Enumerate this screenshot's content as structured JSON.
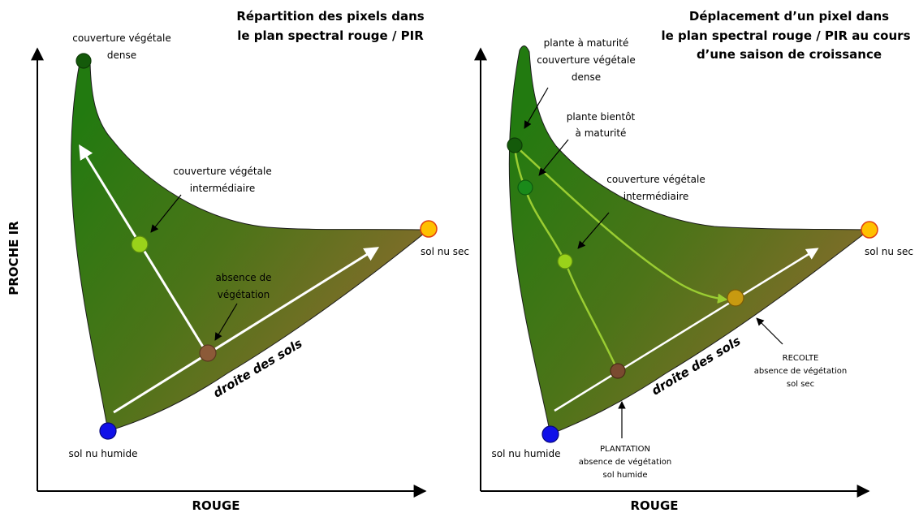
{
  "left_panel": {
    "title_line1": "Répartition des pixels dans",
    "title_line2": "le plan spectral rouge / PIR",
    "y_axis_label": "PROCHE IR",
    "x_axis_label": "ROUGE",
    "soil_line_label": "droite des sols",
    "dense_label_line1": "couverture végétale",
    "dense_label_line2": "dense",
    "intermediate_label_line1": "couverture végétale",
    "intermediate_label_line2": "intermédiaire",
    "absence_label_line1": "absence de",
    "absence_label_line2": "végétation",
    "dry_soil_label": "sol nu sec",
    "wet_soil_label": "sol nu humide"
  },
  "right_panel": {
    "title_line1": "Déplacement d’un pixel dans",
    "title_line2": "le plan spectral rouge / PIR au cours",
    "title_line3": "d’une saison de croissance",
    "x_axis_label": "ROUGE",
    "soil_line_label": "droite des sols",
    "mature_label_line1": "plante à maturité",
    "mature_label_line2": "couverture végétale",
    "mature_label_line3": "dense",
    "near_mature_label_line1": "plante bientôt",
    "near_mature_label_line2": "à maturité",
    "intermediate_label_line1": "couverture végétale",
    "intermediate_label_line2": "intermédiaire",
    "dry_soil_label": "sol nu sec",
    "wet_soil_label": "sol nu humide",
    "harvest_label_line1": "RECOLTE",
    "harvest_label_line2": "absence de végétation",
    "harvest_label_line3": "sol sec",
    "planting_label_line1": "PLANTATION",
    "planting_label_line2": "absence de végétation",
    "planting_label_line3": "sol humide"
  },
  "colors": {
    "vegetation_dense": "#2a7a0e",
    "soil_brown": "#8a6a30",
    "wet_soil_point": "#1010e8",
    "dry_soil_point": "#ffc000",
    "dense_point": "#145a0a",
    "mature_point": "#1a8a1a",
    "intermediate_point": "#9ad21a",
    "absence_point": "#8c5a38",
    "harvest_point": "#c89a10",
    "trajectory": "#9acd32"
  }
}
